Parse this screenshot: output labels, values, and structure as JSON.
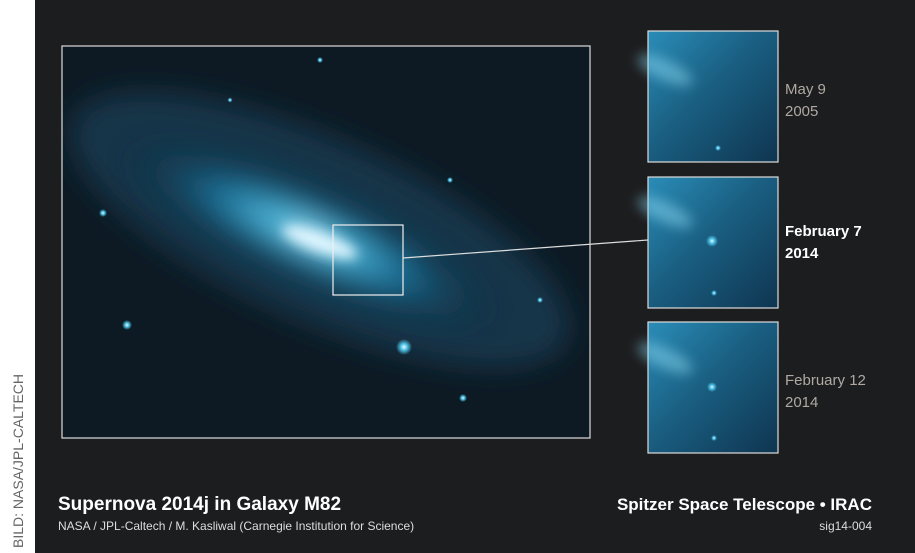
{
  "credit": "BILD: NASA/JPL-CALTECH",
  "image": {
    "title": "Supernova 2014j in Galaxy M82",
    "credit": "NASA / JPL-Caltech / M. Kasliwal (Carnegie Institution for Science)",
    "instrument": "Spitzer Space Telescope • IRAC",
    "id": "sig14-004"
  },
  "panels": [
    {
      "date": "May 9",
      "year": "2005"
    },
    {
      "date": "February 7",
      "year": "2014"
    },
    {
      "date": "February 12",
      "year": "2014"
    }
  ]
}
